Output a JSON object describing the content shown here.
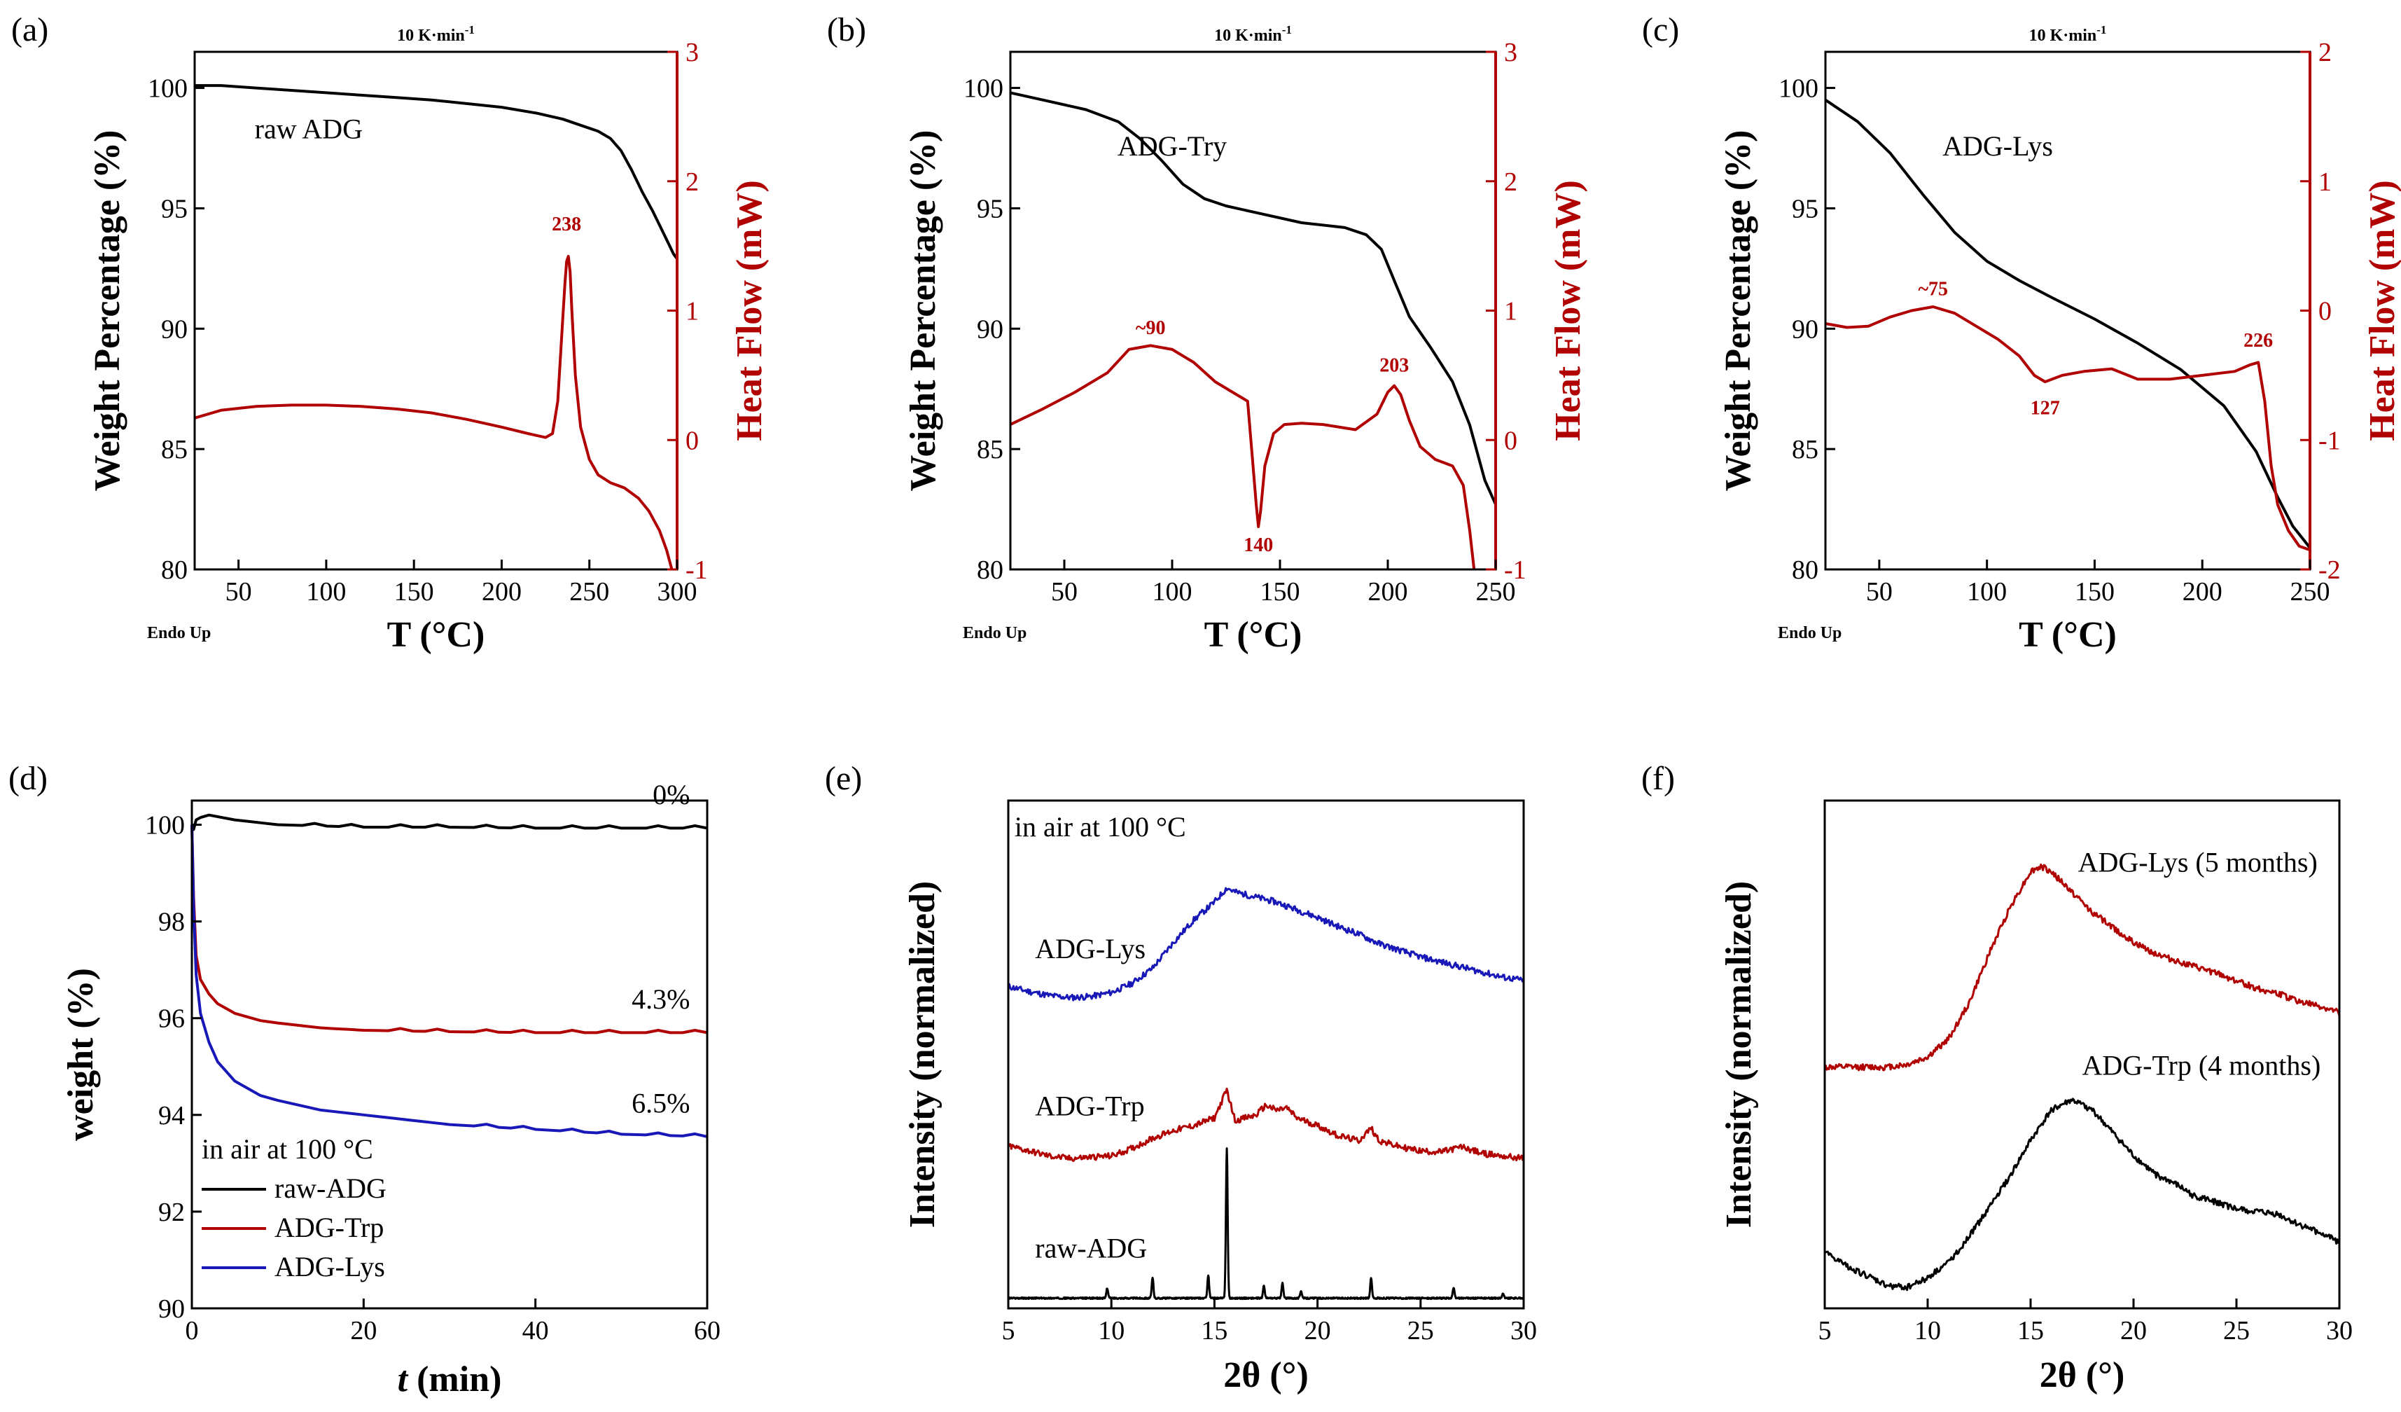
{
  "colors": {
    "black": "#000000",
    "red": "#b00000",
    "blue": "#1818b8"
  },
  "chart_data": [
    {
      "panel": "(a)",
      "type": "line",
      "dual_axis": true,
      "title": "10 K·min",
      "title_sup": "-1",
      "xlabel": "T (°C)",
      "ylabel": "Weight Percentage (%)",
      "y2label": "Heat Flow (mW)",
      "corner_label": "Endo Up",
      "xlim": [
        25,
        300
      ],
      "ylim": [
        80,
        101.5
      ],
      "y2lim": [
        -1,
        3
      ],
      "xticks": [
        50,
        100,
        150,
        200,
        250,
        300
      ],
      "yticks": [
        80,
        85,
        90,
        95,
        100
      ],
      "y2ticks": [
        -1,
        0,
        1,
        2,
        3
      ],
      "series_label": "raw ADG",
      "tga": {
        "x": [
          25,
          40,
          60,
          80,
          100,
          120,
          140,
          160,
          180,
          200,
          220,
          235,
          245,
          255,
          262,
          268,
          274,
          280,
          286,
          292,
          298,
          300
        ],
        "y": [
          100.1,
          100.1,
          100.0,
          99.9,
          99.8,
          99.7,
          99.6,
          99.5,
          99.35,
          99.2,
          98.95,
          98.7,
          98.45,
          98.2,
          97.9,
          97.4,
          96.6,
          95.7,
          94.9,
          94.0,
          93.1,
          92.9
        ]
      },
      "dsc": {
        "x": [
          25,
          40,
          60,
          80,
          100,
          120,
          140,
          160,
          180,
          200,
          215,
          225,
          229,
          232,
          234,
          236,
          237,
          238,
          239,
          240,
          242,
          245,
          250,
          255,
          262,
          270,
          278,
          284,
          290,
          294,
          297
        ],
        "y": [
          0.17,
          0.23,
          0.26,
          0.27,
          0.27,
          0.26,
          0.24,
          0.21,
          0.16,
          0.1,
          0.05,
          0.02,
          0.05,
          0.3,
          0.75,
          1.2,
          1.38,
          1.42,
          1.3,
          1.0,
          0.5,
          0.1,
          -0.15,
          -0.27,
          -0.33,
          -0.37,
          -0.45,
          -0.55,
          -0.7,
          -0.85,
          -1.0
        ]
      },
      "annotations": [
        {
          "text": "238",
          "x": 237,
          "y2": 1.62
        }
      ]
    },
    {
      "panel": "(b)",
      "type": "line",
      "dual_axis": true,
      "title": "10 K·min",
      "title_sup": "-1",
      "xlabel": "T (°C)",
      "ylabel": "Weight Percentage (%)",
      "y2label": "Heat Flow (mW)",
      "corner_label": "Endo Up",
      "xlim": [
        25,
        250
      ],
      "ylim": [
        80,
        101.5
      ],
      "y2lim": [
        -1,
        3
      ],
      "xticks": [
        50,
        100,
        150,
        200,
        250
      ],
      "yticks": [
        80,
        85,
        90,
        95,
        100
      ],
      "y2ticks": [
        -1,
        0,
        1,
        2,
        3
      ],
      "series_label": "ADG-Try",
      "tga": {
        "x": [
          25,
          40,
          60,
          75,
          85,
          95,
          105,
          115,
          125,
          140,
          160,
          180,
          190,
          197,
          203,
          210,
          220,
          230,
          238,
          245,
          250
        ],
        "y": [
          99.8,
          99.5,
          99.1,
          98.6,
          97.9,
          97.0,
          96.0,
          95.4,
          95.1,
          94.8,
          94.4,
          94.2,
          93.9,
          93.3,
          92.0,
          90.5,
          89.2,
          87.8,
          86.0,
          83.7,
          82.7
        ]
      },
      "dsc": {
        "x": [
          25,
          40,
          55,
          70,
          80,
          90,
          100,
          110,
          120,
          130,
          135,
          137,
          139,
          140,
          141,
          143,
          147,
          152,
          160,
          170,
          185,
          195,
          200,
          203,
          206,
          210,
          215,
          222,
          230,
          235,
          238,
          240
        ],
        "y": [
          0.12,
          0.24,
          0.37,
          0.52,
          0.7,
          0.73,
          0.7,
          0.6,
          0.45,
          0.35,
          0.3,
          -0.1,
          -0.5,
          -0.67,
          -0.55,
          -0.2,
          0.05,
          0.12,
          0.13,
          0.12,
          0.08,
          0.2,
          0.37,
          0.42,
          0.35,
          0.15,
          -0.05,
          -0.15,
          -0.2,
          -0.35,
          -0.7,
          -1.0
        ]
      },
      "annotations": [
        {
          "text": "~90",
          "x": 90,
          "y2": 0.82
        },
        {
          "text": "140",
          "x": 140,
          "y2": -0.86
        },
        {
          "text": "203",
          "x": 203,
          "y2": 0.53
        }
      ]
    },
    {
      "panel": "(c)",
      "type": "line",
      "dual_axis": true,
      "title": "10 K·min",
      "title_sup": "-1",
      "xlabel": "T (°C)",
      "ylabel": "Weight Percentage (%)",
      "y2label": "Heat Flow (mW)",
      "corner_label": "Endo Up",
      "xlim": [
        25,
        250
      ],
      "ylim": [
        80,
        101.5
      ],
      "y2lim": [
        -2,
        2
      ],
      "xticks": [
        50,
        100,
        150,
        200,
        250
      ],
      "yticks": [
        80,
        85,
        90,
        95,
        100
      ],
      "y2ticks": [
        -2,
        -1,
        0,
        1,
        2
      ],
      "series_label": "ADG-Lys",
      "tga": {
        "x": [
          25,
          40,
          55,
          70,
          85,
          100,
          115,
          130,
          150,
          170,
          190,
          210,
          225,
          235,
          242,
          250
        ],
        "y": [
          99.5,
          98.6,
          97.3,
          95.6,
          94.0,
          92.8,
          92.0,
          91.3,
          90.4,
          89.4,
          88.3,
          86.8,
          84.9,
          83.0,
          81.8,
          80.9
        ]
      },
      "dsc": {
        "x": [
          25,
          35,
          45,
          55,
          65,
          75,
          85,
          95,
          105,
          115,
          122,
          127,
          135,
          145,
          158,
          170,
          185,
          200,
          215,
          222,
          226,
          229,
          232,
          235,
          240,
          245,
          250
        ],
        "y": [
          -0.1,
          -0.13,
          -0.12,
          -0.05,
          0.0,
          0.03,
          -0.02,
          -0.12,
          -0.22,
          -0.35,
          -0.5,
          -0.55,
          -0.5,
          -0.47,
          -0.45,
          -0.53,
          -0.53,
          -0.5,
          -0.47,
          -0.42,
          -0.4,
          -0.7,
          -1.2,
          -1.5,
          -1.7,
          -1.82,
          -1.85
        ]
      },
      "annotations": [
        {
          "text": "~75",
          "x": 75,
          "y2": 0.12
        },
        {
          "text": "127",
          "x": 127,
          "y2": -0.8
        },
        {
          "text": "226",
          "x": 226,
          "y2": -0.28
        }
      ]
    },
    {
      "panel": "(d)",
      "type": "line",
      "xlabel": "t",
      "xlabel_suffix": " (min)",
      "ylabel": "weight (%)",
      "xlim": [
        0,
        60
      ],
      "ylim": [
        90,
        100.5
      ],
      "xticks": [
        0,
        20,
        40,
        60
      ],
      "yticks": [
        90,
        92,
        94,
        96,
        98,
        100
      ],
      "legend_title": "in air at 100 °C",
      "series": [
        {
          "name": "raw-ADG",
          "color": "black",
          "final_label": "0%",
          "x": [
            0,
            0.2,
            0.5,
            1,
            2,
            5,
            10,
            20,
            30,
            40,
            50,
            60
          ],
          "y": [
            100.0,
            99.9,
            100.1,
            100.15,
            100.2,
            100.1,
            100.0,
            99.95,
            99.95,
            99.93,
            99.93,
            99.93
          ]
        },
        {
          "name": "ADG-Trp",
          "color": "red",
          "final_label": "4.3%",
          "x": [
            0,
            0.2,
            0.5,
            1,
            2,
            3,
            5,
            8,
            10,
            15,
            20,
            30,
            40,
            50,
            60
          ],
          "y": [
            100.0,
            98.5,
            97.3,
            96.8,
            96.5,
            96.3,
            96.1,
            95.95,
            95.9,
            95.8,
            95.75,
            95.72,
            95.7,
            95.7,
            95.7
          ]
        },
        {
          "name": "ADG-Lys",
          "color": "blue",
          "final_label": "6.5%",
          "x": [
            0,
            0.2,
            0.5,
            1,
            2,
            3,
            5,
            8,
            10,
            15,
            20,
            25,
            30,
            40,
            50,
            60
          ],
          "y": [
            100.0,
            98.3,
            96.9,
            96.1,
            95.5,
            95.1,
            94.7,
            94.4,
            94.3,
            94.1,
            94.0,
            93.9,
            93.8,
            93.7,
            93.6,
            93.55
          ]
        }
      ]
    },
    {
      "panel": "(e)",
      "type": "line",
      "xlabel": "2θ (°)",
      "ylabel": "Intensity (normalized)",
      "xlim": [
        5,
        30
      ],
      "ylim": [
        0,
        1
      ],
      "xticks": [
        5,
        10,
        15,
        20,
        25,
        30
      ],
      "note": "in air at 100 °C",
      "series": [
        {
          "name": "ADG-Lys",
          "color": "blue",
          "x": [
            5,
            6,
            7,
            8,
            9,
            10,
            11,
            12,
            13,
            14,
            15,
            15.6,
            16,
            17,
            18,
            19,
            20,
            21,
            22,
            23,
            24,
            25,
            26,
            27,
            28,
            29,
            30
          ],
          "y": [
            0.634,
            0.624,
            0.616,
            0.612,
            0.614,
            0.622,
            0.64,
            0.67,
            0.72,
            0.765,
            0.8,
            0.828,
            0.82,
            0.81,
            0.8,
            0.785,
            0.77,
            0.752,
            0.737,
            0.718,
            0.705,
            0.692,
            0.682,
            0.672,
            0.662,
            0.652,
            0.646
          ]
        },
        {
          "name": "ADG-Trp",
          "color": "red",
          "x": [
            5,
            6,
            7,
            8,
            9,
            10,
            11,
            12,
            13,
            14,
            15,
            15.6,
            16,
            17,
            17.5,
            18,
            18.5,
            19,
            20,
            21,
            22,
            22.6,
            23,
            24,
            25,
            26,
            27,
            28,
            29,
            30
          ],
          "y": [
            0.32,
            0.31,
            0.3,
            0.295,
            0.298,
            0.3,
            0.315,
            0.335,
            0.35,
            0.36,
            0.375,
            0.43,
            0.37,
            0.38,
            0.4,
            0.39,
            0.395,
            0.375,
            0.36,
            0.34,
            0.33,
            0.355,
            0.33,
            0.318,
            0.31,
            0.308,
            0.318,
            0.305,
            0.3,
            0.295
          ]
        },
        {
          "name": "raw-ADG",
          "color": "black",
          "baseline": 0.02,
          "x": [
            5,
            30
          ],
          "y": [
            0.02,
            0.02
          ],
          "peaks": [
            {
              "x": 9.8,
              "h": 0.02
            },
            {
              "x": 12,
              "h": 0.04
            },
            {
              "x": 14.7,
              "h": 0.045
            },
            {
              "x": 15.6,
              "h": 0.295
            },
            {
              "x": 17.4,
              "h": 0.025
            },
            {
              "x": 18.3,
              "h": 0.03
            },
            {
              "x": 19.2,
              "h": 0.015
            },
            {
              "x": 22.6,
              "h": 0.04
            },
            {
              "x": 26.6,
              "h": 0.02
            },
            {
              "x": 29.0,
              "h": 0.01
            }
          ]
        }
      ]
    },
    {
      "panel": "(f)",
      "type": "line",
      "xlabel": "2θ (°)",
      "ylabel": "Intensity (normalized)",
      "xlim": [
        5,
        30
      ],
      "ylim": [
        0,
        1
      ],
      "xticks": [
        5,
        10,
        15,
        20,
        25,
        30
      ],
      "series": [
        {
          "name": "ADG-Lys (5 months)",
          "color": "red",
          "x": [
            5,
            6,
            7,
            8,
            9,
            10,
            11,
            12,
            13,
            14,
            15,
            15.5,
            16,
            17,
            18,
            19,
            20,
            21,
            22,
            23,
            24,
            25,
            26,
            27,
            28,
            29,
            30
          ],
          "y": [
            0.475,
            0.475,
            0.475,
            0.475,
            0.48,
            0.495,
            0.53,
            0.6,
            0.7,
            0.79,
            0.86,
            0.87,
            0.86,
            0.82,
            0.78,
            0.75,
            0.72,
            0.7,
            0.685,
            0.672,
            0.66,
            0.645,
            0.63,
            0.62,
            0.605,
            0.595,
            0.582
          ]
        },
        {
          "name": "ADG-Trp (4 months)",
          "color": "black",
          "x": [
            5,
            6,
            7,
            8,
            9,
            10,
            11,
            12,
            13,
            14,
            15,
            16,
            17,
            18,
            19,
            20,
            21,
            22,
            23,
            24,
            25,
            26,
            27,
            28,
            29,
            30
          ],
          "y": [
            0.11,
            0.085,
            0.065,
            0.045,
            0.042,
            0.06,
            0.09,
            0.14,
            0.2,
            0.26,
            0.33,
            0.39,
            0.41,
            0.39,
            0.345,
            0.3,
            0.265,
            0.245,
            0.22,
            0.21,
            0.195,
            0.19,
            0.185,
            0.165,
            0.15,
            0.13
          ]
        }
      ]
    }
  ]
}
